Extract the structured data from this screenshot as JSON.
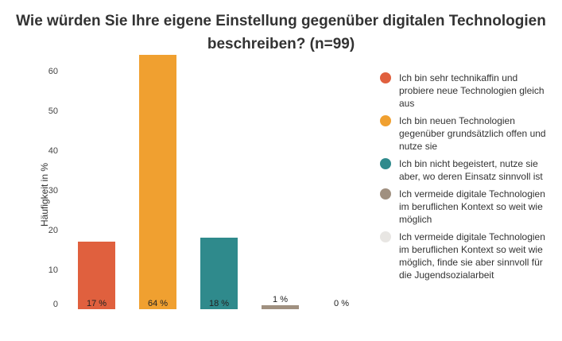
{
  "chart_data": {
    "type": "bar",
    "title": "Wie würden Sie Ihre eigene Einstellung gegenüber digitalen Technologien beschreiben? (n=99)",
    "ylabel": "Häufigkeit in %",
    "xlabel": "",
    "ylim": [
      0,
      67
    ],
    "yticks": [
      "0",
      "10",
      "20",
      "30",
      "40",
      "50",
      "60"
    ],
    "grid": false,
    "legend_position": "right",
    "categories": [
      "Ich bin sehr technikaffin und probiere neue Technologien gleich aus",
      "Ich bin neuen Technologien gegenüber grundsätzlich offen und nutze sie",
      "Ich bin nicht begeistert, nutze sie aber, wo deren Einsatz sinnvoll ist",
      "Ich vermeide digitale Technologien im beruflichen Kontext so weit wie möglich",
      "Ich vermeide digitale Technologien im beruflichen Kontext so weit wie möglich, finde sie aber sinnvoll für die Jugendsozialarbeit"
    ],
    "values": [
      17,
      64,
      18,
      1,
      0
    ],
    "value_labels": [
      "17 %",
      "64 %",
      "18 %",
      "1 %",
      "0 %"
    ],
    "colors": [
      "#e0603e",
      "#f0a030",
      "#2f8a8c",
      "#a09080",
      "#e8e6e3"
    ]
  }
}
